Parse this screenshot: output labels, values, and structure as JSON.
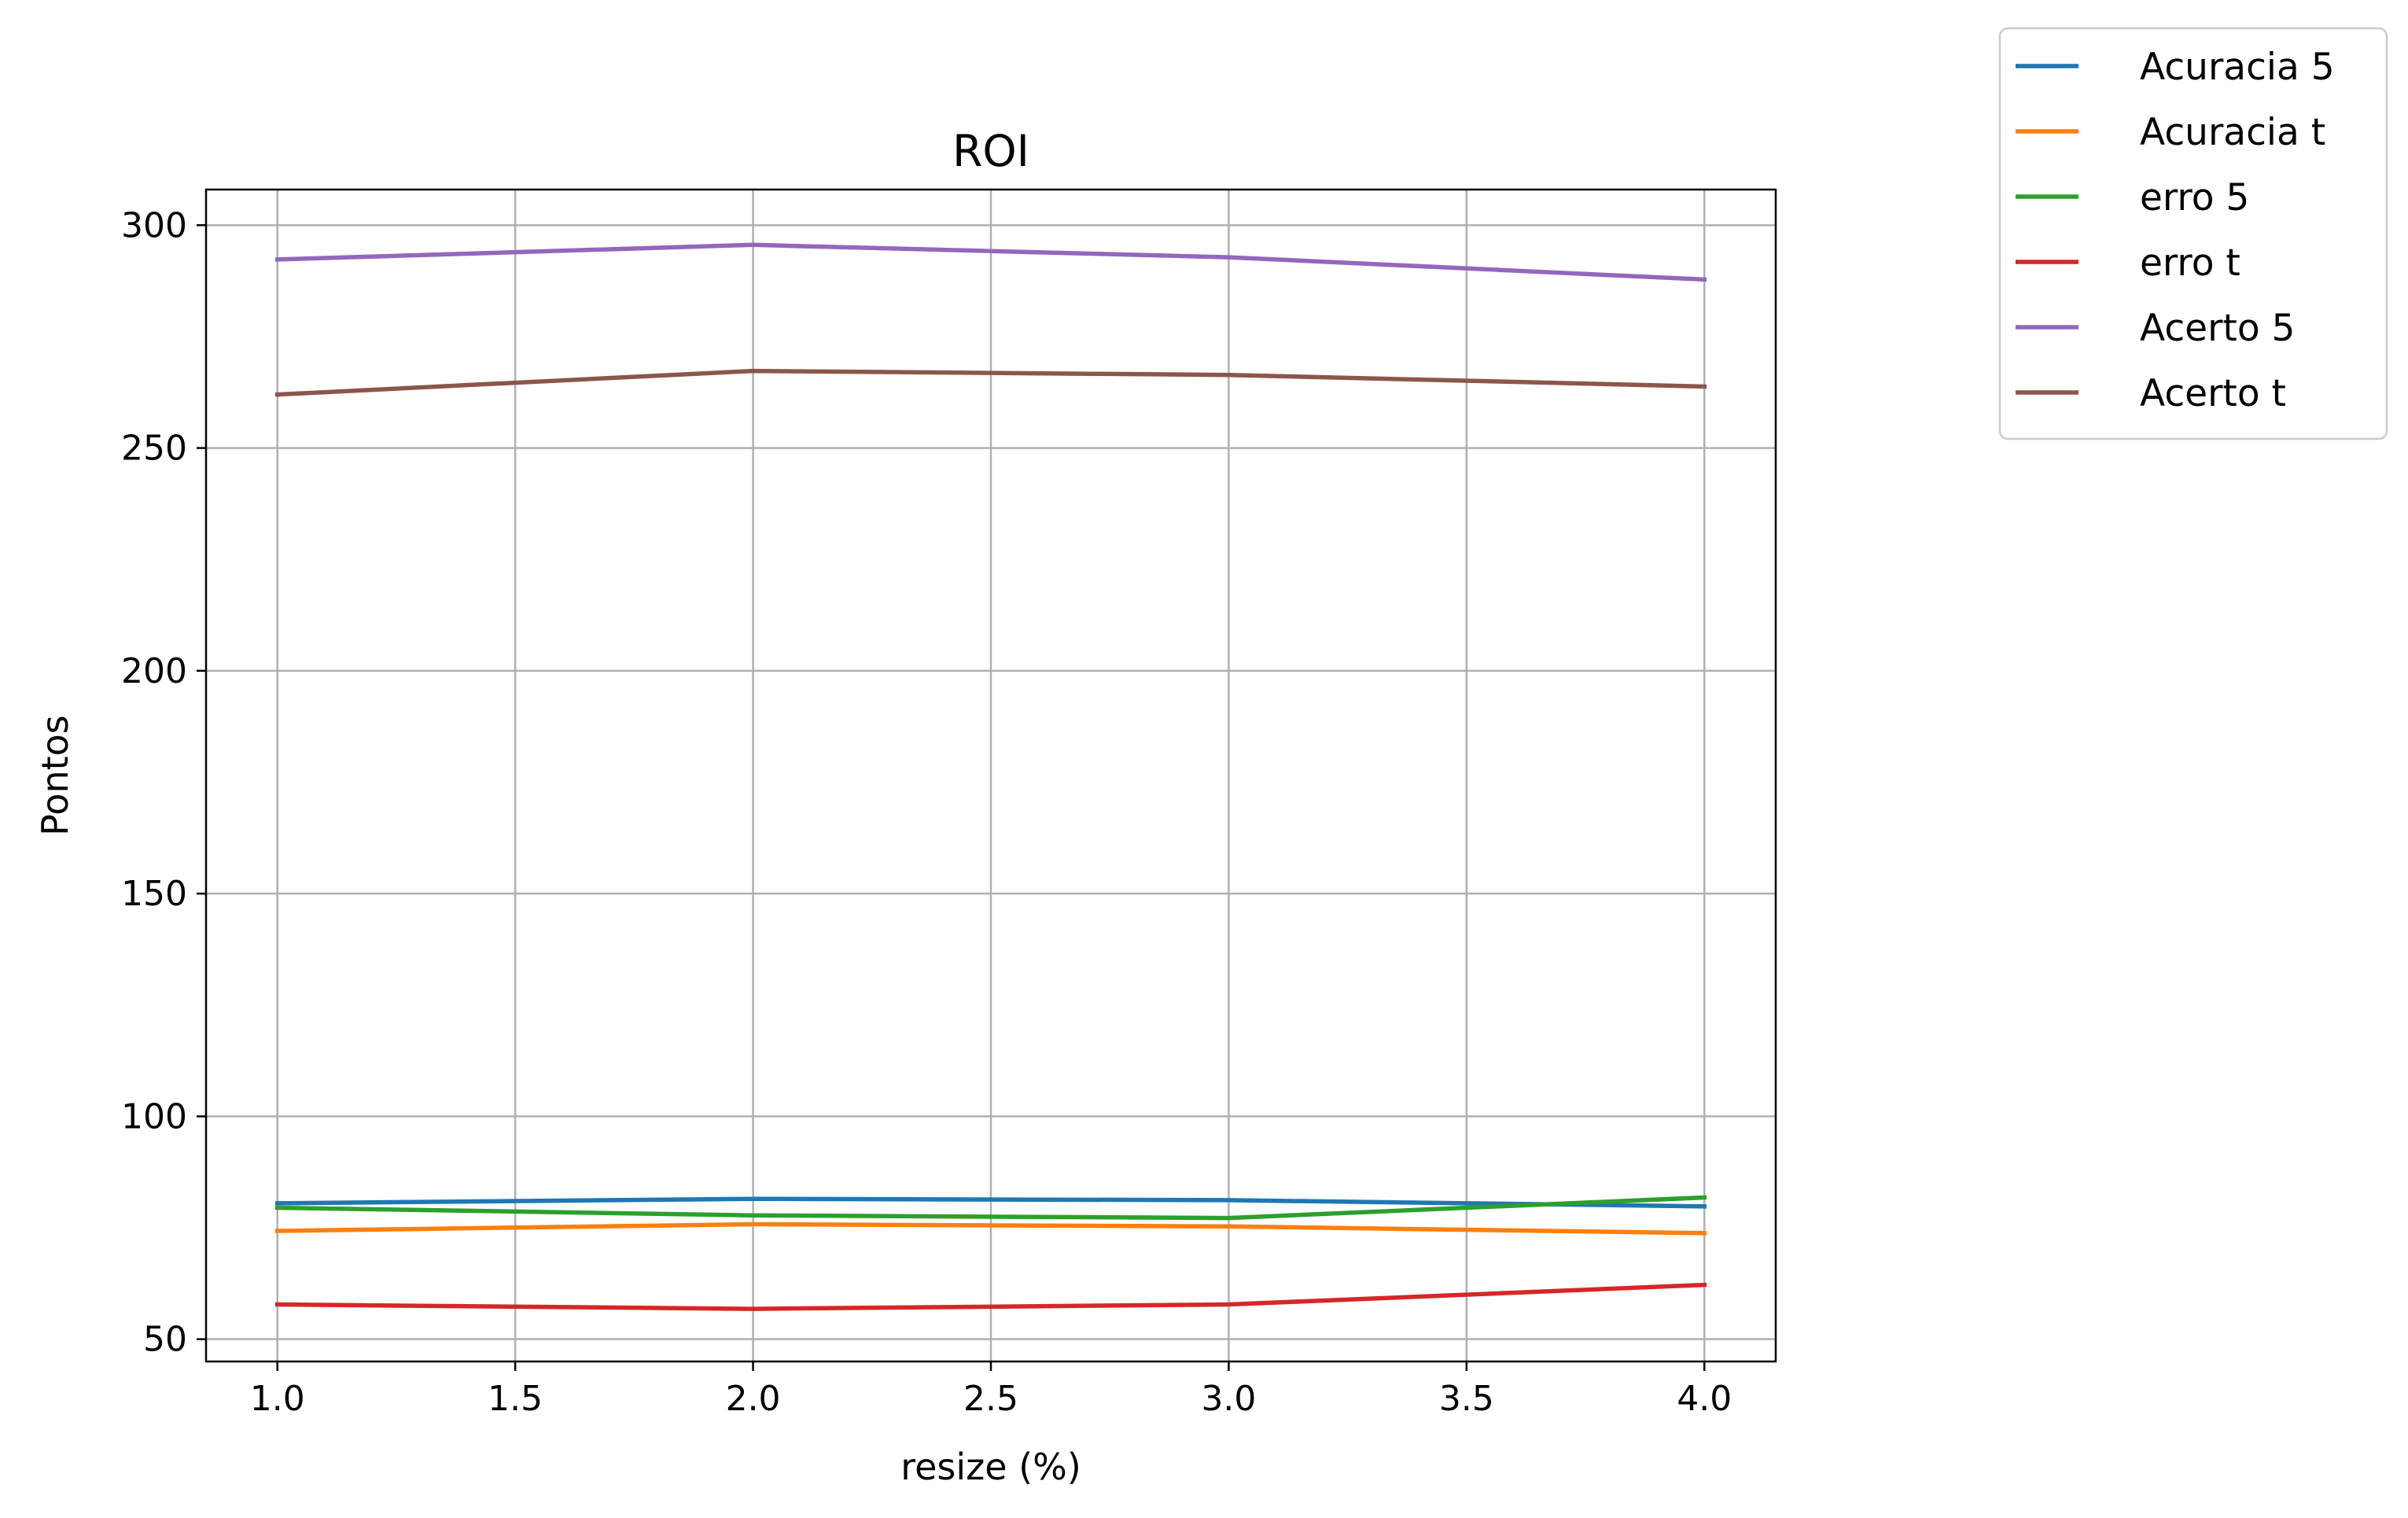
{
  "chart_data": {
    "type": "line",
    "title": "ROI",
    "xlabel": "resize (%)",
    "ylabel": "Pontos",
    "x": [
      1.0,
      2.0,
      3.0,
      4.0
    ],
    "xlim": [
      0.85,
      4.15
    ],
    "ylim": [
      45,
      308
    ],
    "xticks": [
      "1.0",
      "1.5",
      "2.0",
      "2.5",
      "3.0",
      "3.5",
      "4.0"
    ],
    "yticks": [
      "50",
      "100",
      "150",
      "200",
      "250",
      "300"
    ],
    "grid": true,
    "legend_position": "outside top-right",
    "series": [
      {
        "name": "Acuracia 5",
        "color": "#1f77b4",
        "values": [
          80.5,
          81.5,
          81.2,
          79.8
        ]
      },
      {
        "name": "Acuracia t",
        "color": "#ff7f0e",
        "values": [
          74.3,
          75.8,
          75.3,
          73.8
        ]
      },
      {
        "name": "erro 5",
        "color": "#2ca02c",
        "values": [
          79.5,
          77.8,
          77.2,
          81.8
        ]
      },
      {
        "name": "erro t",
        "color": "#d62728",
        "values": [
          57.8,
          56.8,
          57.8,
          62.2
        ]
      },
      {
        "name": "Acerto 5",
        "color": "#9467bd",
        "values": [
          292.3,
          295.6,
          292.8,
          287.8
        ]
      },
      {
        "name": "Acerto t",
        "color": "#8c564b",
        "values": [
          262.0,
          267.3,
          266.4,
          263.8
        ]
      }
    ]
  }
}
